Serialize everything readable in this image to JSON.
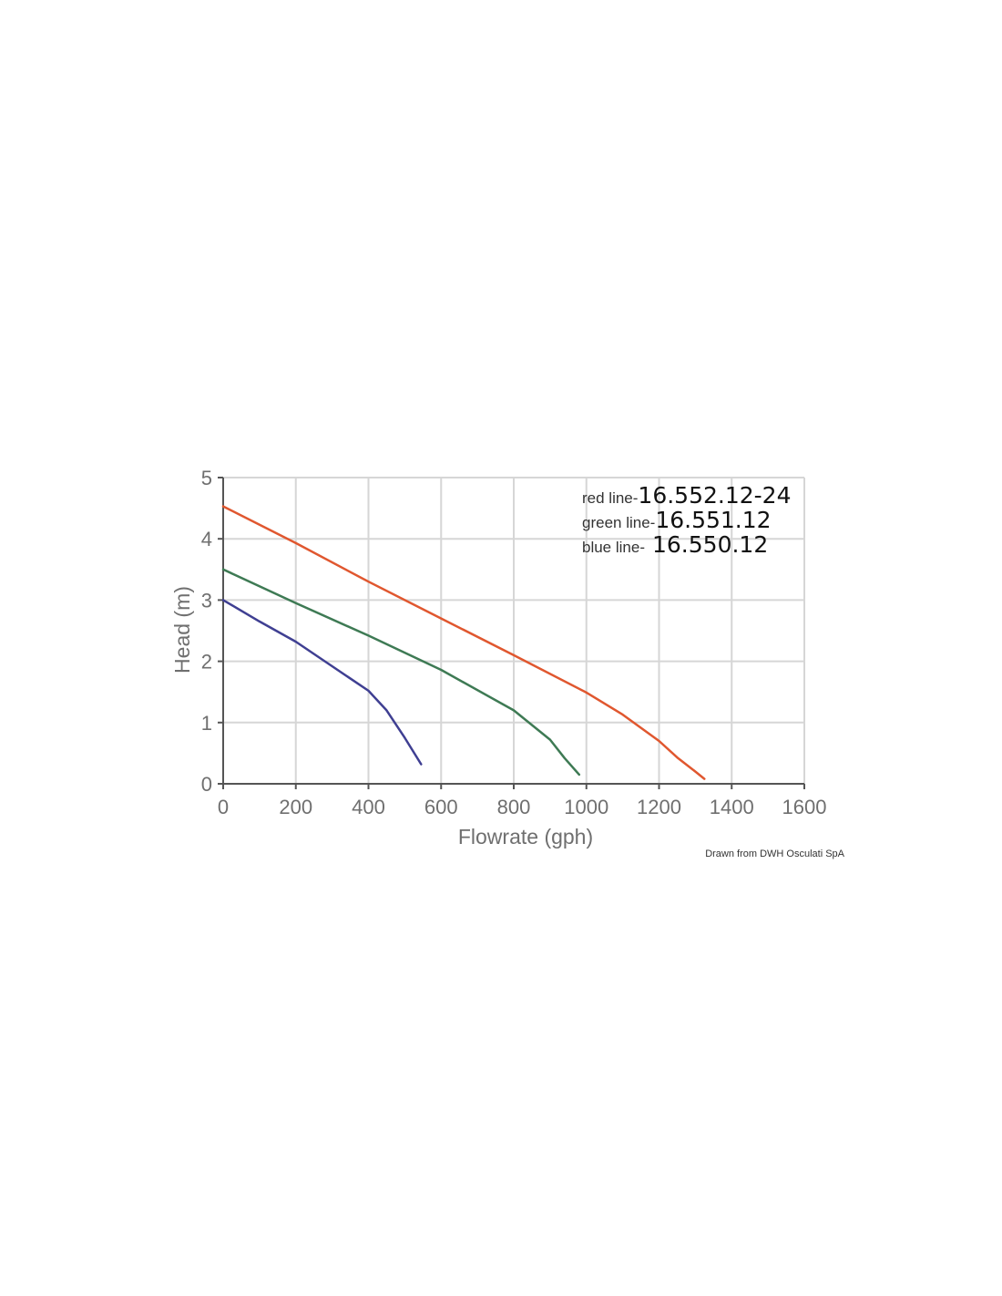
{
  "chart_data": {
    "type": "line",
    "xlabel": "Flowrate (gph)",
    "ylabel": "Head (m)",
    "xlim": [
      0,
      1600
    ],
    "ylim": [
      0,
      5
    ],
    "xticks": [
      0,
      200,
      400,
      600,
      800,
      1000,
      1200,
      1400,
      1600
    ],
    "yticks": [
      0,
      1,
      2,
      3,
      4,
      5
    ],
    "grid": true,
    "legend_position": "top-right",
    "series": [
      {
        "name": "16.552.12-24",
        "legend_prefix": "red line-",
        "color": "#e0572f",
        "x": [
          0,
          200,
          400,
          600,
          800,
          1000,
          1100,
          1200,
          1250,
          1300,
          1325
        ],
        "y": [
          4.53,
          3.93,
          3.3,
          2.7,
          2.1,
          1.49,
          1.13,
          0.7,
          0.43,
          0.2,
          0.08
        ]
      },
      {
        "name": "16.551.12",
        "legend_prefix": "green line-",
        "color": "#3e7a54",
        "x": [
          0,
          200,
          400,
          600,
          800,
          900,
          940,
          980
        ],
        "y": [
          3.5,
          2.95,
          2.42,
          1.86,
          1.2,
          0.72,
          0.42,
          0.15
        ]
      },
      {
        "name": "16.550.12",
        "legend_prefix": "blue line-",
        "color": "#3f3f92",
        "x": [
          0,
          100,
          200,
          300,
          400,
          450,
          500,
          545
        ],
        "y": [
          3.0,
          2.65,
          2.32,
          1.92,
          1.52,
          1.2,
          0.75,
          0.32
        ]
      }
    ]
  },
  "credit": "Drawn from DWH Osculati SpA"
}
